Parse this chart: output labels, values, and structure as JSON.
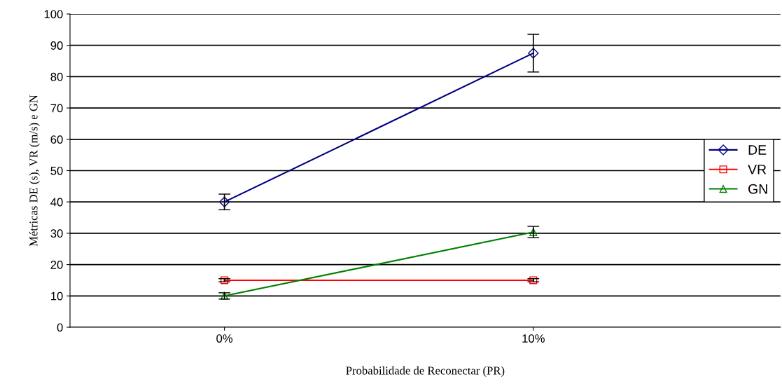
{
  "chart_data": {
    "type": "line",
    "xlabel": "Probabilidade de Reconectar (PR)",
    "ylabel": "Métricas DE (s), VR (m/s) e GN",
    "categories": [
      "0%",
      "10%"
    ],
    "series": [
      {
        "name": "DE",
        "color": "#000080",
        "values": [
          40,
          87.5
        ],
        "errors": [
          2.5,
          6
        ],
        "marker": "diamond"
      },
      {
        "name": "VR",
        "color": "#ff0000",
        "values": [
          15,
          15
        ],
        "errors": [
          0.5,
          0.5
        ],
        "marker": "square"
      },
      {
        "name": "GN",
        "color": "#008000",
        "values": [
          10,
          30.4
        ],
        "errors": [
          1,
          1.8
        ],
        "marker": "triangle"
      }
    ],
    "ylim": [
      0,
      100
    ],
    "yticks": [
      0,
      10,
      20,
      30,
      40,
      50,
      60,
      70,
      80,
      90,
      100
    ],
    "grid": "y",
    "legend": "right"
  }
}
